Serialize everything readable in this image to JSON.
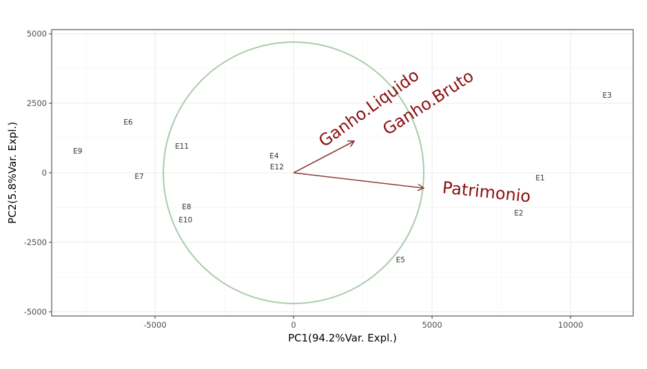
{
  "chart_data": {
    "type": "scatter",
    "subtype": "pca-biplot",
    "xlabel": "PC1(94.2%Var. Expl.)",
    "ylabel": "PC2(5.8%Var. Expl.)",
    "xlim": [
      -8730,
      12260
    ],
    "ylim": [
      -5150,
      5150
    ],
    "x_ticks": [
      -5000,
      0,
      5000,
      10000
    ],
    "y_ticks": [
      5000,
      2500,
      0,
      -2500,
      -5000
    ],
    "x_tick_labels": [
      "-5000",
      "0",
      "5000",
      "10000"
    ],
    "y_tick_labels": [
      "5000",
      "2500",
      "0",
      "-2500",
      "-5000"
    ],
    "grid": true,
    "points": [
      {
        "label": "E1",
        "x": 8900,
        "y": -170
      },
      {
        "label": "E2",
        "x": 8130,
        "y": -1040
      },
      {
        "label": "E3",
        "x": 11320,
        "y": 2800
      },
      {
        "label": "E4",
        "x": -700,
        "y": 570
      },
      {
        "label": "E5",
        "x": 3860,
        "y": -3120
      },
      {
        "label": "E6",
        "x": -5970,
        "y": 1830
      },
      {
        "label": "E7",
        "x": -5570,
        "y": -120
      },
      {
        "label": "E8",
        "x": -3860,
        "y": -1360
      },
      {
        "label": "E9",
        "x": -7790,
        "y": 790
      },
      {
        "label": "E10",
        "x": -3900,
        "y": -1490
      },
      {
        "label": "E11",
        "x": -4030,
        "y": 970
      },
      {
        "label": "E12",
        "x": -600,
        "y": 270
      }
    ],
    "loadings": [
      {
        "label": "Ganho.Liquido",
        "x": 2190,
        "y": 1140
      },
      {
        "label": "Ganho.Bruto",
        "x": 2190,
        "y": 1140
      },
      {
        "label": "Patrimonio",
        "x": 4700,
        "y": -550
      }
    ],
    "circle_radius": 4700,
    "colors": {
      "arrow": "#8b3a3a",
      "loading_label": "#8b1010",
      "circle": "#a9caa9",
      "point_label": "#333333"
    }
  }
}
